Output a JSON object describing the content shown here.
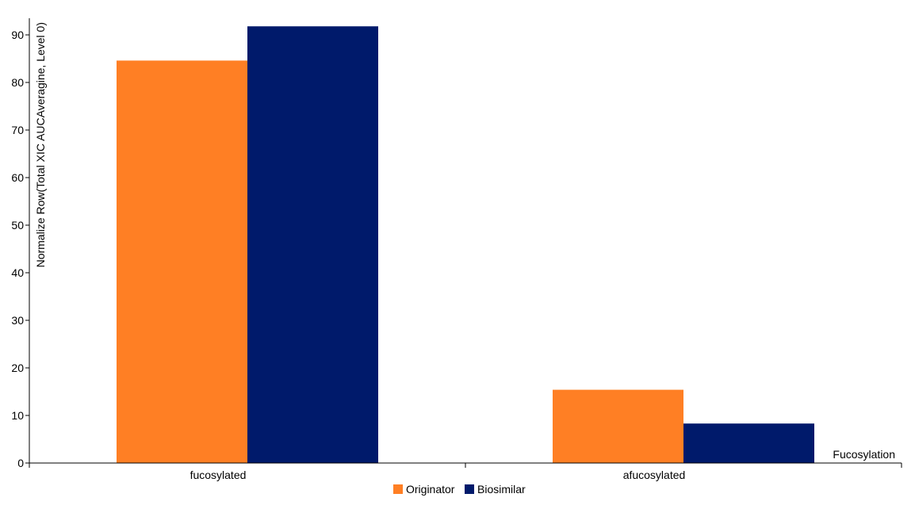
{
  "chart_data": {
    "type": "bar",
    "categories": [
      "fucosylated",
      "afucosylated"
    ],
    "series": [
      {
        "name": "Originator",
        "color": "#FF7F24",
        "values": [
          84.6,
          15.4
        ]
      },
      {
        "name": "Biosimilar",
        "color": "#001A6B",
        "values": [
          91.8,
          8.3
        ]
      }
    ],
    "xlabel": "Fucosylation",
    "ylabel": "Normalize Row(Total XIC AUCAveragine, Level 0)",
    "ylim": [
      0,
      93
    ],
    "yticks": [
      0,
      10,
      20,
      30,
      40,
      50,
      60,
      70,
      80,
      90
    ],
    "grid": false,
    "legend_position": "bottom-center"
  }
}
